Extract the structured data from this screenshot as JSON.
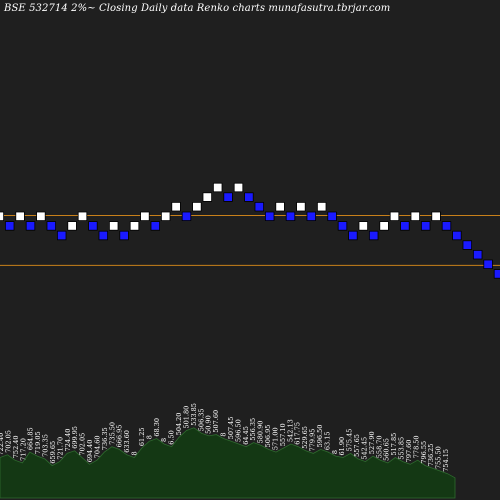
{
  "chart_data": {
    "type": "renko",
    "title": "BSE 532714  2%~  Closing Daily data  Renko  charts munafasutra.tbrjar.com",
    "colors": {
      "background": "#1f1f1f",
      "up_brick": "#ffffff",
      "down_brick": "#1a1aff",
      "brick_border": "#000000",
      "reference_line": "#c8801a",
      "volume_fill": "#143814",
      "volume_line": "#2e6b2e",
      "label": "#ffffff"
    },
    "bricks": [
      {
        "level": 0,
        "dir": "up"
      },
      {
        "level": -1,
        "dir": "down"
      },
      {
        "level": 0,
        "dir": "up"
      },
      {
        "level": -1,
        "dir": "down"
      },
      {
        "level": 0,
        "dir": "up"
      },
      {
        "level": -1,
        "dir": "down"
      },
      {
        "level": -2,
        "dir": "down"
      },
      {
        "level": -1,
        "dir": "up"
      },
      {
        "level": 0,
        "dir": "up"
      },
      {
        "level": -1,
        "dir": "down"
      },
      {
        "level": -2,
        "dir": "down"
      },
      {
        "level": -1,
        "dir": "up"
      },
      {
        "level": -2,
        "dir": "down"
      },
      {
        "level": -1,
        "dir": "up"
      },
      {
        "level": 0,
        "dir": "up"
      },
      {
        "level": -1,
        "dir": "down"
      },
      {
        "level": 0,
        "dir": "up"
      },
      {
        "level": 1,
        "dir": "up"
      },
      {
        "level": 0,
        "dir": "down"
      },
      {
        "level": 1,
        "dir": "up"
      },
      {
        "level": 2,
        "dir": "up"
      },
      {
        "level": 3,
        "dir": "up"
      },
      {
        "level": 2,
        "dir": "down"
      },
      {
        "level": 3,
        "dir": "up"
      },
      {
        "level": 2,
        "dir": "down"
      },
      {
        "level": 1,
        "dir": "down"
      },
      {
        "level": 0,
        "dir": "down"
      },
      {
        "level": 1,
        "dir": "up"
      },
      {
        "level": 0,
        "dir": "down"
      },
      {
        "level": 1,
        "dir": "up"
      },
      {
        "level": 0,
        "dir": "down"
      },
      {
        "level": 1,
        "dir": "up"
      },
      {
        "level": 0,
        "dir": "down"
      },
      {
        "level": -1,
        "dir": "down"
      },
      {
        "level": -2,
        "dir": "down"
      },
      {
        "level": -1,
        "dir": "up"
      },
      {
        "level": -2,
        "dir": "down"
      },
      {
        "level": -1,
        "dir": "up"
      },
      {
        "level": 0,
        "dir": "up"
      },
      {
        "level": -1,
        "dir": "down"
      },
      {
        "level": 0,
        "dir": "up"
      },
      {
        "level": -1,
        "dir": "down"
      },
      {
        "level": 0,
        "dir": "up"
      },
      {
        "level": -1,
        "dir": "down"
      },
      {
        "level": -2,
        "dir": "down"
      },
      {
        "level": -3,
        "dir": "down"
      },
      {
        "level": -4,
        "dir": "down"
      },
      {
        "level": -5,
        "dir": "down"
      },
      {
        "level": -6,
        "dir": "down"
      },
      {
        "level": -5,
        "dir": "up"
      },
      {
        "level": -4,
        "dir": "up"
      },
      {
        "level": -5,
        "dir": "down"
      },
      {
        "level": -6,
        "dir": "down"
      },
      {
        "level": -7,
        "dir": "down"
      },
      {
        "level": -6,
        "dir": "up"
      },
      {
        "level": -7,
        "dir": "down"
      },
      {
        "level": -6,
        "dir": "up"
      },
      {
        "level": -5,
        "dir": "up"
      },
      {
        "level": -6,
        "dir": "down"
      },
      {
        "level": -7,
        "dir": "down"
      },
      {
        "level": -8,
        "dir": "down"
      }
    ],
    "reference_lines": [
      0,
      -5.2
    ],
    "volume": [
      30,
      32,
      28,
      26,
      34,
      31,
      29,
      24,
      27,
      33,
      35,
      30,
      25,
      28,
      34,
      38,
      36,
      32,
      30,
      37,
      42,
      44,
      40,
      38,
      45,
      50,
      52,
      48,
      46,
      47,
      44,
      42,
      40,
      38,
      41,
      39,
      36,
      34,
      37,
      40,
      38,
      35,
      33,
      36,
      34,
      31,
      30,
      33,
      29,
      27,
      31,
      28,
      26,
      30,
      27,
      25,
      28,
      24,
      22,
      20,
      18,
      15
    ],
    "price_labels": [
      "722.40",
      "702.05",
      "752.40",
      "717.20",
      "664.85",
      "719.05",
      "703.35",
      "659.65",
      "721.70",
      "724.40",
      "699.95",
      "702.05",
      "694.40",
      "704.60",
      "736.35",
      "735.50",
      "666.95",
      "633.60",
      "8",
      "61.25",
      "8",
      "68.30",
      "8",
      "6.50",
      "504.20",
      "501.80",
      "533.85",
      "506.35",
      "50.90",
      "507.60",
      "8",
      "507.45",
      "596.50",
      "64.45",
      "556.35",
      "580.90",
      "506.95",
      "571.00",
      "557.10",
      "542.13",
      "617.75",
      "529.65",
      "779.95",
      "596.50",
      "63.15",
      "8",
      "61.90",
      "575.45",
      "557.65",
      "542.45",
      "527.90",
      "558.70",
      "560.65",
      "517.85",
      "553.85",
      "797.60",
      "778.50",
      "796.55",
      "736.25",
      "755.50",
      "754.15"
    ]
  }
}
